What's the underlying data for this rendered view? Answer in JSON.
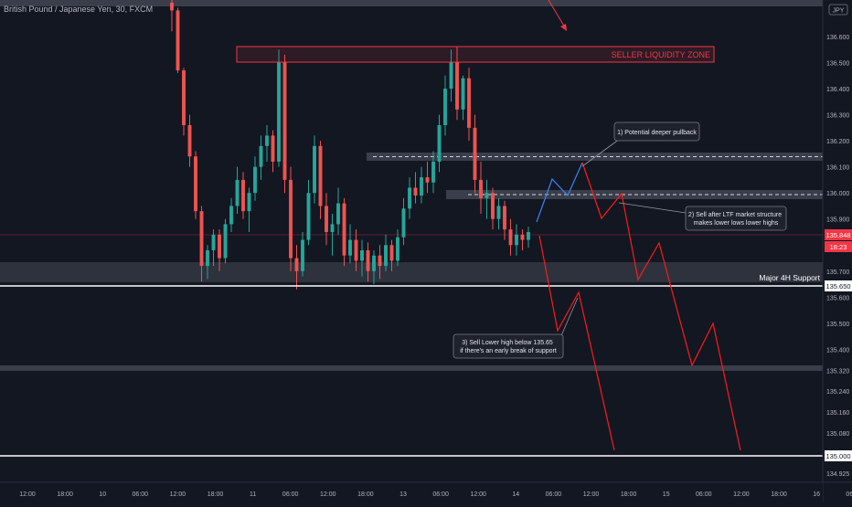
{
  "header": {
    "symbol_title": "British Pound / Japanese Yen, 30, FXCM",
    "currency_badge": "JPY"
  },
  "colors": {
    "background": "#131722",
    "bull": "#26a69a",
    "bear": "#ef5350",
    "zone_fill": "#3a3e4a",
    "axis_text": "#b2b5be",
    "price_tag": "#f23645",
    "projection_red": "#ff1a1a",
    "projection_blue": "#3b82f6",
    "white_line": "#ffffff"
  },
  "chart_data": {
    "type": "candlestick",
    "symbol": "British Pound / Japanese Yen",
    "timeframe": "30",
    "source": "FXCM",
    "ylim": [
      134.89,
      136.74
    ],
    "y_ticks": [
      "136.600",
      "136.500",
      "136.400",
      "136.300",
      "136.200",
      "136.100",
      "136.000",
      "135.900",
      "135.800",
      "135.700",
      "135.600",
      "135.500",
      "135.400",
      "135.320",
      "135.240",
      "135.160",
      "135.080",
      "134.925"
    ],
    "x_ticks": [
      "12:00",
      "18:00",
      "10",
      "06:00",
      "12:00",
      "18:00",
      "11",
      "06:00",
      "12:00",
      "18:00",
      "13",
      "06:00",
      "12:00",
      "14",
      "06:00",
      "12:00",
      "18:00",
      "15",
      "06:00",
      "12:00",
      "18:00",
      "16",
      "06:00",
      "12:00"
    ],
    "price_tags": [
      {
        "label": "135.848",
        "type": "current_price"
      },
      {
        "label": "18:23",
        "type": "countdown"
      },
      {
        "label": "135.650",
        "type": "level"
      },
      {
        "label": "135.000",
        "type": "level"
      }
    ],
    "candles": [
      [
        136.73,
        136.74,
        136.62,
        136.7
      ],
      [
        136.7,
        136.71,
        136.46,
        136.47
      ],
      [
        136.47,
        136.48,
        136.22,
        136.26
      ],
      [
        136.26,
        136.3,
        136.1,
        136.14
      ],
      [
        136.14,
        136.16,
        135.9,
        135.93
      ],
      [
        135.93,
        135.95,
        135.66,
        135.72
      ],
      [
        135.72,
        135.8,
        135.67,
        135.78
      ],
      [
        135.78,
        135.86,
        135.72,
        135.84
      ],
      [
        135.84,
        135.86,
        135.7,
        135.75
      ],
      [
        135.75,
        135.9,
        135.73,
        135.88
      ],
      [
        135.88,
        135.98,
        135.85,
        135.95
      ],
      [
        135.95,
        136.1,
        135.92,
        136.05
      ],
      [
        136.05,
        136.08,
        135.9,
        135.93
      ],
      [
        135.93,
        136.02,
        135.85,
        136.0
      ],
      [
        136.0,
        136.14,
        135.97,
        136.1
      ],
      [
        136.1,
        136.22,
        136.05,
        136.18
      ],
      [
        136.18,
        136.26,
        136.12,
        136.22
      ],
      [
        136.22,
        136.24,
        136.08,
        136.12
      ],
      [
        136.12,
        136.55,
        136.1,
        136.5
      ],
      [
        136.5,
        136.53,
        136.0,
        136.05
      ],
      [
        136.05,
        136.1,
        135.7,
        135.75
      ],
      [
        135.75,
        135.8,
        135.63,
        135.7
      ],
      [
        135.7,
        135.85,
        135.68,
        135.82
      ],
      [
        135.82,
        136.05,
        135.8,
        136.0
      ],
      [
        136.0,
        136.22,
        135.96,
        136.18
      ],
      [
        136.18,
        136.2,
        135.9,
        135.95
      ],
      [
        135.95,
        136.0,
        135.8,
        135.85
      ],
      [
        135.85,
        135.92,
        135.76,
        135.88
      ],
      [
        135.88,
        136.02,
        135.84,
        135.96
      ],
      [
        135.96,
        135.98,
        135.72,
        135.76
      ],
      [
        135.76,
        135.88,
        135.73,
        135.82
      ],
      [
        135.82,
        135.86,
        135.7,
        135.74
      ],
      [
        135.74,
        135.82,
        135.68,
        135.78
      ],
      [
        135.78,
        135.81,
        135.66,
        135.7
      ],
      [
        135.7,
        135.78,
        135.65,
        135.76
      ],
      [
        135.76,
        135.8,
        135.67,
        135.72
      ],
      [
        135.72,
        135.84,
        135.7,
        135.8
      ],
      [
        135.8,
        135.82,
        135.7,
        135.74
      ],
      [
        135.74,
        135.86,
        135.72,
        135.83
      ],
      [
        135.83,
        135.98,
        135.8,
        135.94
      ],
      [
        135.94,
        136.06,
        135.9,
        136.02
      ],
      [
        136.02,
        136.08,
        135.96,
        135.99
      ],
      [
        135.99,
        136.1,
        135.96,
        136.06
      ],
      [
        136.06,
        136.12,
        136.0,
        136.04
      ],
      [
        136.04,
        136.16,
        136.0,
        136.12
      ],
      [
        136.12,
        136.3,
        136.08,
        136.26
      ],
      [
        136.26,
        136.45,
        136.22,
        136.4
      ],
      [
        136.4,
        136.55,
        136.35,
        136.5
      ],
      [
        136.5,
        136.56,
        136.28,
        136.32
      ],
      [
        136.32,
        136.45,
        136.28,
        136.44
      ],
      [
        136.44,
        136.48,
        136.2,
        136.25
      ],
      [
        136.25,
        136.3,
        136.0,
        136.05
      ],
      [
        136.05,
        136.12,
        135.92,
        135.98
      ],
      [
        135.98,
        136.05,
        135.9,
        136.0
      ],
      [
        136.0,
        136.02,
        135.86,
        135.9
      ],
      [
        135.9,
        135.98,
        135.86,
        135.95
      ],
      [
        135.95,
        135.97,
        135.82,
        135.86
      ],
      [
        135.86,
        135.9,
        135.76,
        135.8
      ],
      [
        135.8,
        135.88,
        135.76,
        135.84
      ],
      [
        135.84,
        135.86,
        135.78,
        135.82
      ],
      [
        135.82,
        135.87,
        135.79,
        135.85
      ]
    ],
    "zones": [
      {
        "label": "SELLER LIQUIDITY ZONE",
        "top": 136.55,
        "bottom": 136.51
      },
      {
        "top": 136.16,
        "bottom": 136.14
      },
      {
        "top": 136.02,
        "bottom": 135.99
      },
      {
        "label": "Major 4H Support",
        "top": 135.73,
        "bottom": 135.67
      },
      {
        "top": 135.35,
        "bottom": 135.34
      },
      {
        "top": 136.74,
        "bottom": 136.72
      }
    ],
    "levels": [
      135.65,
      135.0,
      135.848
    ],
    "annotations": [
      "1) Potential deeper pullback",
      "2) Sell after LTF market structure makes lower lows lower highs",
      "3) Sell Lower high below 135.65 if there's an early break of support"
    ]
  }
}
